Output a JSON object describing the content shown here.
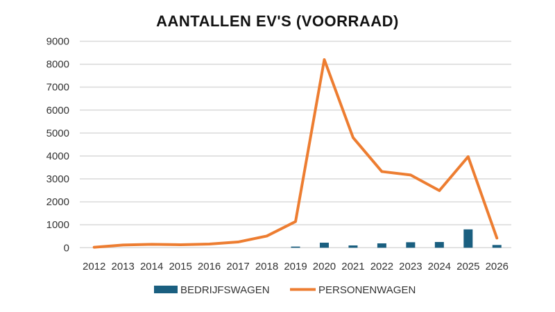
{
  "chart_data": {
    "type": "bar+line",
    "title": "AANTALLEN EV'S (VOORRAAD)",
    "xlabel": "",
    "ylabel": "",
    "categories": [
      "2012",
      "2013",
      "2014",
      "2015",
      "2016",
      "2017",
      "2018",
      "2019",
      "2020",
      "2021",
      "2022",
      "2023",
      "2024",
      "2025",
      "2026"
    ],
    "series": [
      {
        "name": "BEDRIJFSWAGEN",
        "type": "bar",
        "color": "#1a5f80",
        "values": [
          0,
          0,
          0,
          0,
          0,
          0,
          0,
          50,
          220,
          100,
          190,
          240,
          250,
          800,
          120
        ]
      },
      {
        "name": "PERSONENWAGEN",
        "type": "line",
        "color": "#ed7d31",
        "values": [
          20,
          120,
          150,
          130,
          160,
          250,
          510,
          1140,
          8200,
          4800,
          3320,
          3170,
          2490,
          3970,
          420
        ]
      }
    ],
    "ylim": [
      0,
      9000
    ],
    "yticks": [
      0,
      1000,
      2000,
      3000,
      4000,
      5000,
      6000,
      7000,
      8000,
      9000
    ],
    "grid": true,
    "legend": "bottom"
  }
}
